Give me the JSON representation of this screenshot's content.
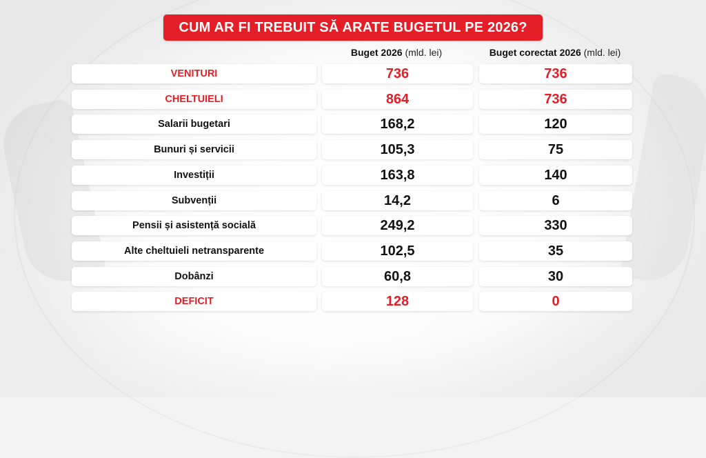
{
  "title": "CUM AR FI TREBUIT SĂ ARATE BUGETUL PE 2026?",
  "columns": [
    {
      "label": "Buget 2026",
      "unit": "(mld. lei)"
    },
    {
      "label": "Buget corectat 2026",
      "unit": "(mld. lei)"
    }
  ],
  "colors": {
    "accent": "#e41e26",
    "text": "#111111",
    "cell_bg": "#ffffff"
  },
  "chart_data": {
    "type": "table",
    "title": "CUM AR FI TREBUIT SĂ ARATE BUGETUL PE 2026?",
    "columns": [
      "Buget 2026 (mld. lei)",
      "Buget corectat 2026 (mld. lei)"
    ],
    "rows": [
      {
        "label": "VENITURI",
        "values": [
          "736",
          "736"
        ],
        "highlight": true
      },
      {
        "label": "CHELTUIELI",
        "values": [
          "864",
          "736"
        ],
        "highlight": true
      },
      {
        "label": "Salarii bugetari",
        "values": [
          "168,2",
          "120"
        ],
        "highlight": false
      },
      {
        "label": "Bunuri și servicii",
        "values": [
          "105,3",
          "75"
        ],
        "highlight": false
      },
      {
        "label": "Investiții",
        "values": [
          "163,8",
          "140"
        ],
        "highlight": false
      },
      {
        "label": "Subvenții",
        "values": [
          "14,2",
          "6"
        ],
        "highlight": false
      },
      {
        "label": "Pensii și asistență socială",
        "values": [
          "249,2",
          "330"
        ],
        "highlight": false
      },
      {
        "label": "Alte cheltuieli netransparente",
        "values": [
          "102,5",
          "35"
        ],
        "highlight": false
      },
      {
        "label": "Dobânzi",
        "values": [
          "60,8",
          "30"
        ],
        "highlight": false
      },
      {
        "label": "DEFICIT",
        "values": [
          "128",
          "0"
        ],
        "highlight": true
      }
    ]
  }
}
